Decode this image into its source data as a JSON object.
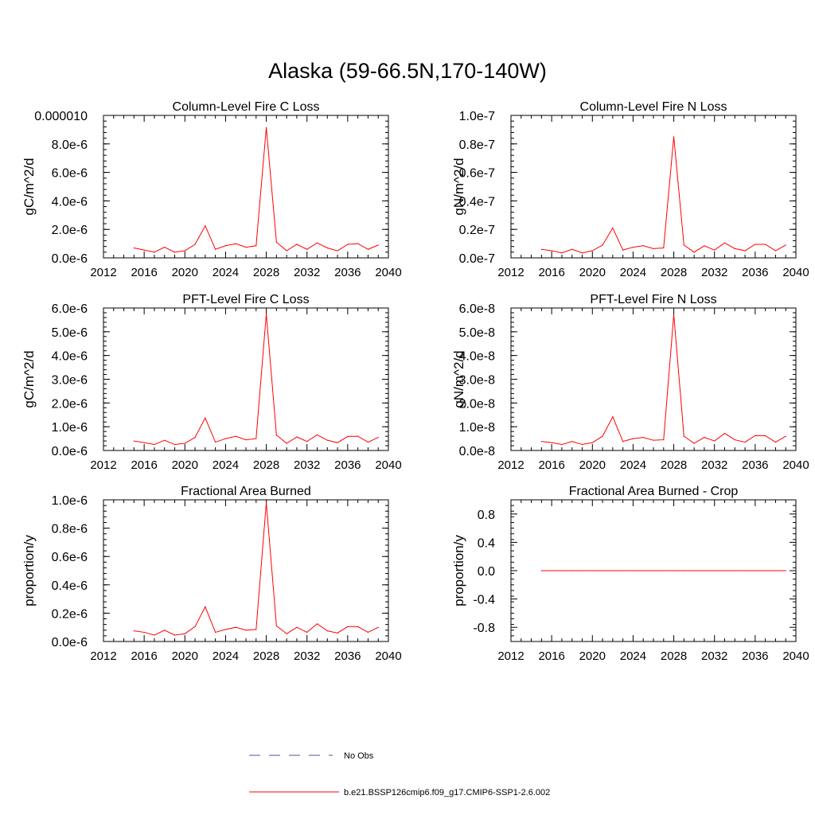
{
  "figure": {
    "title": "Alaska (59-66.5N,170-140W)"
  },
  "chart_data": [
    {
      "type": "line",
      "title": "Column-Level Fire C Loss",
      "ylabel": "gC/m^2/d",
      "xlabel": "",
      "xlim": [
        2012,
        2040
      ],
      "ylim": [
        0,
        1e-05
      ],
      "x_ticks": [
        2012,
        2016,
        2020,
        2024,
        2028,
        2032,
        2036,
        2040
      ],
      "y_ticks": [
        0,
        2e-06,
        4e-06,
        6e-06,
        8e-06,
        1e-05
      ],
      "y_tick_labels": [
        "0.0e-6",
        "2.0e-6",
        "4.0e-6",
        "6.0e-6",
        "8.0e-6",
        "0.000010"
      ],
      "x": [
        2015,
        2016,
        2017,
        2018,
        2019,
        2020,
        2021,
        2022,
        2023,
        2024,
        2025,
        2026,
        2027,
        2028,
        2029,
        2030,
        2031,
        2032,
        2033,
        2034,
        2035,
        2036,
        2037,
        2038,
        2039
      ],
      "series": [
        {
          "name": "b.e21.BSSP126cmip6.f09_g17.CMIP6-SSP1-2.6.002",
          "color": "#ff0000",
          "values": [
            7e-07,
            5.5e-07,
            4e-07,
            7.5e-07,
            4e-07,
            5e-07,
            9.5e-07,
            2.25e-06,
            6e-07,
            8.5e-07,
            1e-06,
            7.5e-07,
            8.5e-07,
            9.15e-06,
            1.1e-06,
            5e-07,
            9.5e-07,
            6e-07,
            1.05e-06,
            7e-07,
            5e-07,
            9.5e-07,
            1e-06,
            6e-07,
            9e-07
          ]
        }
      ]
    },
    {
      "type": "line",
      "title": "Column-Level Fire N Loss",
      "ylabel": "gN/m^2/d",
      "xlabel": "",
      "xlim": [
        2012,
        2040
      ],
      "ylim": [
        0,
        1e-07
      ],
      "x_ticks": [
        2012,
        2016,
        2020,
        2024,
        2028,
        2032,
        2036,
        2040
      ],
      "y_ticks": [
        0,
        2e-08,
        4e-08,
        6e-08,
        8e-08,
        1e-07
      ],
      "y_tick_labels": [
        "0.0e-7",
        "0.2e-7",
        "0.4e-7",
        "0.6e-7",
        "0.8e-7",
        "1.0e-7"
      ],
      "x": [
        2015,
        2016,
        2017,
        2018,
        2019,
        2020,
        2021,
        2022,
        2023,
        2024,
        2025,
        2026,
        2027,
        2028,
        2029,
        2030,
        2031,
        2032,
        2033,
        2034,
        2035,
        2036,
        2037,
        2038,
        2039
      ],
      "series": [
        {
          "name": "b.e21.BSSP126cmip6.f09_g17.CMIP6-SSP1-2.6.002",
          "color": "#ff0000",
          "values": [
            6e-09,
            5e-09,
            3.5e-09,
            6e-09,
            3.5e-09,
            5e-09,
            9e-09,
            2.1e-08,
            5.5e-09,
            7.5e-09,
            8.5e-09,
            6.5e-09,
            7e-09,
            8.5e-08,
            9e-09,
            4e-09,
            8.5e-09,
            5.5e-09,
            1.05e-08,
            6.5e-09,
            5e-09,
            9.5e-09,
            9.5e-09,
            5e-09,
            9e-09
          ]
        }
      ]
    },
    {
      "type": "line",
      "title": "PFT-Level Fire C Loss",
      "ylabel": "gC/m^2/d",
      "xlabel": "",
      "xlim": [
        2012,
        2040
      ],
      "ylim": [
        0,
        6e-06
      ],
      "x_ticks": [
        2012,
        2016,
        2020,
        2024,
        2028,
        2032,
        2036,
        2040
      ],
      "y_ticks": [
        0,
        1e-06,
        2e-06,
        3e-06,
        4e-06,
        5e-06,
        6e-06
      ],
      "y_tick_labels": [
        "0.0e-6",
        "1.0e-6",
        "2.0e-6",
        "3.0e-6",
        "4.0e-6",
        "5.0e-6",
        "6.0e-6"
      ],
      "x": [
        2015,
        2016,
        2017,
        2018,
        2019,
        2020,
        2021,
        2022,
        2023,
        2024,
        2025,
        2026,
        2027,
        2028,
        2029,
        2030,
        2031,
        2032,
        2033,
        2034,
        2035,
        2036,
        2037,
        2038,
        2039
      ],
      "series": [
        {
          "name": "b.e21.BSSP126cmip6.f09_g17.CMIP6-SSP1-2.6.002",
          "color": "#ff0000",
          "values": [
            4e-07,
            3.3e-07,
            2.5e-07,
            4.3e-07,
            2.5e-07,
            3e-07,
            5.5e-07,
            1.37e-06,
            3.5e-07,
            5e-07,
            6e-07,
            4.5e-07,
            5e-07,
            5.75e-06,
            6.5e-07,
            3e-07,
            5.7e-07,
            3.8e-07,
            6.6e-07,
            4.3e-07,
            3.3e-07,
            5.9e-07,
            6e-07,
            3.5e-07,
            5.5e-07
          ]
        }
      ]
    },
    {
      "type": "line",
      "title": "PFT-Level Fire N Loss",
      "ylabel": "gN/m^2/d",
      "xlabel": "",
      "xlim": [
        2012,
        2040
      ],
      "ylim": [
        0,
        6e-08
      ],
      "x_ticks": [
        2012,
        2016,
        2020,
        2024,
        2028,
        2032,
        2036,
        2040
      ],
      "y_ticks": [
        0,
        1e-08,
        2e-08,
        3e-08,
        4e-08,
        5e-08,
        6e-08
      ],
      "y_tick_labels": [
        "0.0e-8",
        "1.0e-8",
        "2.0e-8",
        "3.0e-8",
        "4.0e-8",
        "5.0e-8",
        "6.0e-8"
      ],
      "x": [
        2015,
        2016,
        2017,
        2018,
        2019,
        2020,
        2021,
        2022,
        2023,
        2024,
        2025,
        2026,
        2027,
        2028,
        2029,
        2030,
        2031,
        2032,
        2033,
        2034,
        2035,
        2036,
        2037,
        2038,
        2039
      ],
      "series": [
        {
          "name": "b.e21.BSSP126cmip6.f09_g17.CMIP6-SSP1-2.6.002",
          "color": "#ff0000",
          "values": [
            3.8e-09,
            3.3e-09,
            2.5e-09,
            3.8e-09,
            2.5e-09,
            3.3e-09,
            6e-09,
            1.42e-08,
            3.8e-09,
            5e-09,
            5.5e-09,
            4.3e-09,
            4.5e-09,
            5.72e-08,
            6e-09,
            3e-09,
            5.5e-09,
            4e-09,
            7.2e-09,
            4.5e-09,
            3.5e-09,
            6.3e-09,
            6.2e-09,
            3.5e-09,
            6e-09
          ]
        }
      ]
    },
    {
      "type": "line",
      "title": "Fractional Area Burned",
      "ylabel": "proportion/y",
      "xlabel": "",
      "xlim": [
        2012,
        2040
      ],
      "ylim": [
        0,
        1e-06
      ],
      "x_ticks": [
        2012,
        2016,
        2020,
        2024,
        2028,
        2032,
        2036,
        2040
      ],
      "y_ticks": [
        0,
        2e-07,
        4e-07,
        6e-07,
        8e-07,
        1e-06
      ],
      "y_tick_labels": [
        "0.0e-6",
        "0.2e-6",
        "0.4e-6",
        "0.6e-6",
        "0.8e-6",
        "1.0e-6"
      ],
      "x": [
        2015,
        2016,
        2017,
        2018,
        2019,
        2020,
        2021,
        2022,
        2023,
        2024,
        2025,
        2026,
        2027,
        2028,
        2029,
        2030,
        2031,
        2032,
        2033,
        2034,
        2035,
        2036,
        2037,
        2038,
        2039
      ],
      "series": [
        {
          "name": "b.e21.BSSP126cmip6.f09_g17.CMIP6-SSP1-2.6.002",
          "color": "#ff0000",
          "values": [
            7.5e-08,
            6.5e-08,
            4.5e-08,
            8e-08,
            4.5e-08,
            5.5e-08,
            1.05e-07,
            2.45e-07,
            6.5e-08,
            8.5e-08,
            1e-07,
            8e-08,
            8.5e-08,
            9.8e-07,
            1.1e-07,
            5.5e-08,
            1e-07,
            6.5e-08,
            1.25e-07,
            7.5e-08,
            6e-08,
            1.05e-07,
            1.05e-07,
            6.5e-08,
            1e-07
          ]
        }
      ]
    },
    {
      "type": "line",
      "title": "Fractional Area Burned - Crop",
      "ylabel": "proportion/y",
      "xlabel": "",
      "xlim": [
        2012,
        2040
      ],
      "ylim": [
        -1.0,
        1.0
      ],
      "x_ticks": [
        2012,
        2016,
        2020,
        2024,
        2028,
        2032,
        2036,
        2040
      ],
      "y_ticks": [
        -0.8,
        -0.4,
        0,
        0.4,
        0.8
      ],
      "y_tick_labels": [
        "-0.8",
        "-0.4",
        "0.0",
        "0.4",
        "0.8"
      ],
      "x": [
        2015,
        2016,
        2017,
        2018,
        2019,
        2020,
        2021,
        2022,
        2023,
        2024,
        2025,
        2026,
        2027,
        2028,
        2029,
        2030,
        2031,
        2032,
        2033,
        2034,
        2035,
        2036,
        2037,
        2038,
        2039
      ],
      "series": [
        {
          "name": "b.e21.BSSP126cmip6.f09_g17.CMIP6-SSP1-2.6.002",
          "color": "#ff0000",
          "values": [
            0,
            0,
            0,
            0,
            0,
            0,
            0,
            0,
            0,
            0,
            0,
            0,
            0,
            0,
            0,
            0,
            0,
            0,
            0,
            0,
            0,
            0,
            0,
            0,
            0
          ]
        }
      ]
    }
  ],
  "legend": {
    "items": [
      {
        "label": "No Obs",
        "color": "#5050a0",
        "style": "dashed"
      },
      {
        "label": "b.e21.BSSP126cmip6.f09_g17.CMIP6-SSP1-2.6.002",
        "color": "#ff0000",
        "style": "solid"
      }
    ]
  }
}
